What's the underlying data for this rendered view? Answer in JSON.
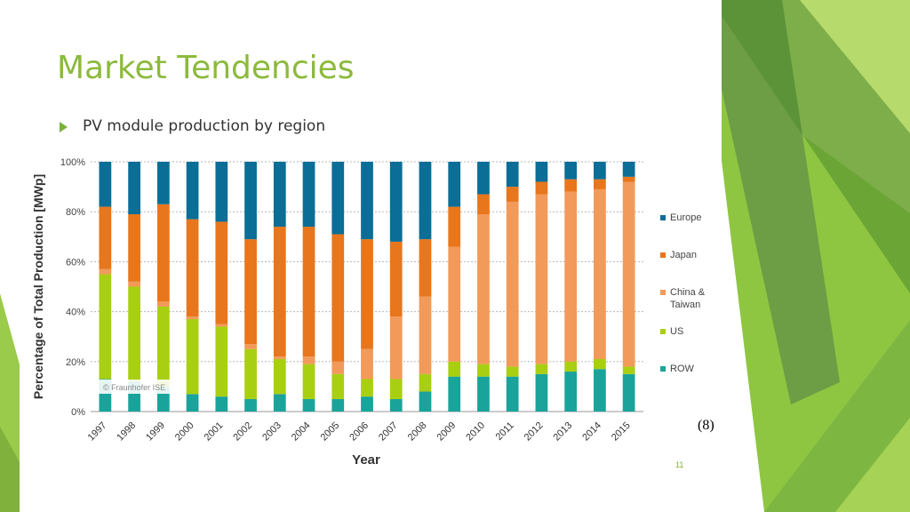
{
  "slide": {
    "title": "Market Tendencies",
    "bullet": "PV module production by region",
    "reference": "(8)",
    "page_number": "11"
  },
  "colors": {
    "title": "#8cba3c",
    "Europe": "#0a6e96",
    "Japan": "#e8761c",
    "China & Taiwan": "#f29a5a",
    "US": "#a9cf12",
    "ROW": "#1aa39b"
  },
  "chart_data": {
    "type": "bar",
    "stacked": true,
    "title": "",
    "xlabel": "Year",
    "ylabel": "Percentage of Total Production [MWp]",
    "ylim": [
      0,
      100
    ],
    "yticks": [
      "0%",
      "20%",
      "40%",
      "60%",
      "80%",
      "100%"
    ],
    "grid": true,
    "legend_position": "right",
    "watermark": "© Fraunhofer ISE",
    "categories": [
      "1997",
      "1998",
      "1999",
      "2000",
      "2001",
      "2002",
      "2003",
      "2004",
      "2005",
      "2006",
      "2007",
      "2008",
      "2009",
      "2010",
      "2011",
      "2012",
      "2013",
      "2014",
      "2015"
    ],
    "series": [
      {
        "name": "ROW",
        "values": [
          13,
          12,
          10,
          7,
          6,
          5,
          7,
          5,
          5,
          6,
          5,
          8,
          14,
          14,
          14,
          15,
          16,
          17,
          15
        ]
      },
      {
        "name": "US",
        "values": [
          42,
          38,
          32,
          30,
          28,
          20,
          14,
          14,
          10,
          7,
          8,
          7,
          6,
          5,
          4,
          4,
          4,
          4,
          3
        ]
      },
      {
        "name": "China & Taiwan",
        "values": [
          2,
          2,
          2,
          1,
          1,
          2,
          1,
          3,
          5,
          12,
          25,
          31,
          46,
          60,
          66,
          68,
          68,
          68,
          74
        ]
      },
      {
        "name": "Japan",
        "values": [
          25,
          27,
          39,
          39,
          41,
          42,
          52,
          52,
          51,
          44,
          30,
          23,
          16,
          8,
          6,
          5,
          5,
          4,
          2
        ]
      },
      {
        "name": "Europe",
        "values": [
          18,
          21,
          17,
          23,
          24,
          31,
          26,
          26,
          29,
          31,
          32,
          31,
          18,
          13,
          10,
          8,
          7,
          7,
          6
        ]
      }
    ],
    "legend": [
      "Europe",
      "Japan",
      "China & Taiwan",
      "US",
      "ROW"
    ]
  }
}
